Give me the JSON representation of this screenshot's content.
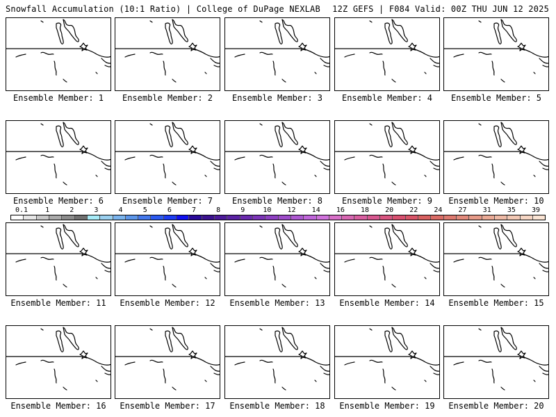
{
  "header": {
    "left": "Snowfall Accumulation (10:1 Ratio) | College of DuPage NEXLAB",
    "right": "12Z GEFS | F084 Valid: 00Z THU JUN 12 2025"
  },
  "panels": [
    "Ensemble Member: 1",
    "Ensemble Member: 2",
    "Ensemble Member: 3",
    "Ensemble Member: 4",
    "Ensemble Member: 5",
    "Ensemble Member: 6",
    "Ensemble Member: 7",
    "Ensemble Member: 8",
    "Ensemble Member: 9",
    "Ensemble Member: 10",
    "Ensemble Member: 11",
    "Ensemble Member: 12",
    "Ensemble Member: 13",
    "Ensemble Member: 14",
    "Ensemble Member: 15",
    "Ensemble Member: 16",
    "Ensemble Member: 17",
    "Ensemble Member: 18",
    "Ensemble Member: 19",
    "Ensemble Member: 20"
  ],
  "colorbar": {
    "tick_labels": [
      "0.1",
      "1",
      "2",
      "3",
      "4",
      "5",
      "6",
      "7",
      "8",
      "9",
      "10",
      "12",
      "14",
      "16",
      "18",
      "20",
      "22",
      "24",
      "27",
      "31",
      "35",
      "39"
    ],
    "colors": [
      "#ffffff",
      "#e6e6e6",
      "#c8c8c8",
      "#aaaaaa",
      "#8c8c8c",
      "#707070",
      "#a8ecf8",
      "#9ad0f0",
      "#7ab4ee",
      "#5c96ea",
      "#4478ec",
      "#2c5af0",
      "#1c3cf4",
      "#1010f0",
      "#2a0a9a",
      "#3c1290",
      "#4c1a9a",
      "#5a22a4",
      "#6a2aae",
      "#7c34b8",
      "#8e40c2",
      "#9e4cca",
      "#ae58d2",
      "#c066da",
      "#d072dc",
      "#d870c8",
      "#d866b2",
      "#d85ea0",
      "#d85890",
      "#d85480",
      "#d85070",
      "#d85468",
      "#d86060",
      "#da6c66",
      "#de7a70",
      "#e28a7c",
      "#e69a88",
      "#eaaa96",
      "#eebaa6",
      "#f2c8b4",
      "#f6d6c4",
      "#fae4d4"
    ]
  }
}
